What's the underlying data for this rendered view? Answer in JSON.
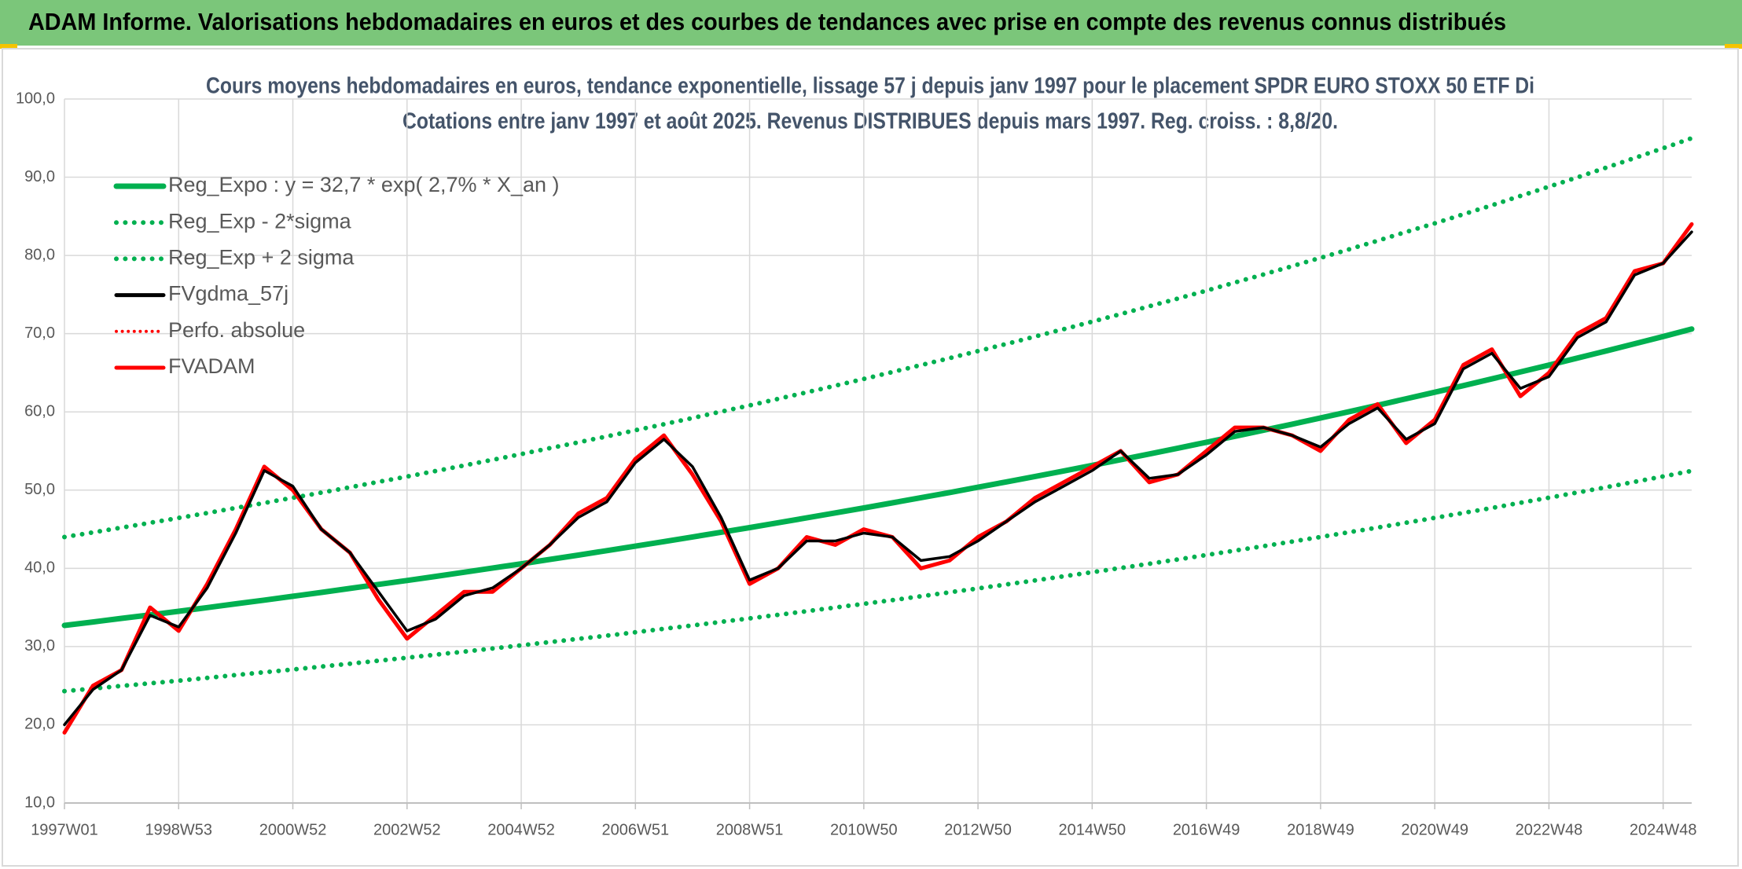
{
  "header": {
    "title": "ADAM Informe. Valorisations hebdomadaires en euros et des courbes de tendances avec prise en compte des revenus connus distribués"
  },
  "chart_data": {
    "type": "line",
    "title": "Cours moyens hebdomadaires en euros, tendance exponentielle, lissage 57 j depuis janv 1997 pour le placement SPDR EURO STOXX 50 ETF Di",
    "subtitle": "Cotations entre janv 1997 et août 2025. Revenus DISTRIBUES depuis mars 1997. Reg. croiss. : 8,8/20.",
    "categories": [
      "1997W01",
      null,
      null,
      null,
      "1998W53",
      null,
      null,
      null,
      "2000W52",
      null,
      null,
      null,
      "2002W52",
      null,
      null,
      null,
      "2004W52",
      null,
      null,
      null,
      "2006W51",
      null,
      null,
      null,
      "2008W51",
      null,
      null,
      null,
      "2010W50",
      null,
      null,
      null,
      "2012W50",
      null,
      null,
      null,
      "2014W50",
      null,
      null,
      null,
      "2016W49",
      null,
      null,
      null,
      "2018W49",
      null,
      null,
      null,
      "2020W49",
      null,
      null,
      null,
      "2022W48",
      null,
      null,
      null,
      "2024W48",
      null
    ],
    "ylim": [
      10,
      100
    ],
    "yticks": [
      {
        "value": 10,
        "label": "10,0"
      },
      {
        "value": 20,
        "label": "20,0"
      },
      {
        "value": 30,
        "label": "30,0"
      },
      {
        "value": 40,
        "label": "40,0"
      },
      {
        "value": 50,
        "label": "50,0"
      },
      {
        "value": 60,
        "label": "60,0"
      },
      {
        "value": 70,
        "label": "70,0"
      },
      {
        "value": 80,
        "label": "80,0"
      },
      {
        "value": 90,
        "label": "90,0"
      },
      {
        "value": 100,
        "label": "100,0"
      }
    ],
    "grid": true,
    "legend": "top-left",
    "series": [
      {
        "name": "Reg_Expo : y = 32,7 * exp( 2,7% *  X_an )",
        "color": "#00b050",
        "style": "solid",
        "values": [
          32.7,
          33.14,
          33.6,
          34.05,
          34.51,
          34.98,
          35.46,
          35.94,
          36.43,
          36.92,
          37.43,
          37.94,
          38.45,
          38.97,
          39.5,
          40.04,
          40.58,
          41.14,
          41.69,
          42.26,
          42.84,
          43.42,
          44.01,
          44.61,
          45.21,
          45.83,
          46.45,
          47.08,
          47.72,
          48.37,
          49.03,
          49.69,
          50.37,
          51.05,
          51.75,
          52.45,
          53.16,
          53.89,
          54.62,
          55.36,
          56.11,
          56.88,
          57.65,
          58.43,
          59.23,
          60.03,
          60.85,
          61.68,
          62.51,
          63.36,
          64.22,
          65.1,
          65.98,
          66.88,
          67.79,
          68.71,
          69.64,
          70.59
        ]
      },
      {
        "name": "Reg_Exp - 2*sigma",
        "color": "#00b050",
        "style": "dotted",
        "values": [
          24.3,
          24.63,
          24.97,
          25.3,
          25.64,
          25.99,
          26.35,
          26.71,
          27.07,
          27.44,
          27.81,
          28.19,
          28.57,
          28.96,
          29.35,
          29.75,
          30.16,
          30.57,
          30.98,
          31.4,
          31.83,
          32.27,
          32.7,
          33.15,
          33.6,
          34.06,
          34.52,
          34.99,
          35.46,
          35.94,
          36.43,
          36.93,
          37.43,
          37.94,
          38.46,
          38.98,
          39.5,
          40.04,
          40.59,
          41.14,
          41.7,
          42.27,
          42.84,
          43.42,
          44.01,
          44.61,
          45.22,
          45.83,
          46.45,
          47.08,
          47.72,
          48.38,
          49.03,
          49.7,
          50.37,
          51.06,
          51.75,
          52.46
        ]
      },
      {
        "name": "Reg_Exp + 2 sigma",
        "color": "#00b050",
        "style": "dotted",
        "values": [
          44.0,
          44.59,
          45.21,
          45.82,
          46.44,
          47.07,
          47.72,
          48.36,
          49.02,
          49.68,
          50.37,
          51.05,
          51.74,
          52.44,
          53.15,
          53.88,
          54.61,
          55.36,
          56.1,
          56.87,
          57.65,
          58.43,
          59.22,
          60.03,
          60.83,
          61.67,
          62.5,
          63.35,
          64.21,
          65.09,
          65.98,
          66.86,
          67.78,
          68.69,
          69.64,
          70.58,
          71.53,
          72.51,
          73.5,
          74.49,
          75.5,
          76.54,
          77.57,
          78.62,
          79.7,
          80.78,
          81.88,
          83.0,
          84.11,
          85.26,
          86.41,
          87.6,
          88.79,
          89.99,
          91.22,
          92.46,
          93.71,
          94.99
        ]
      },
      {
        "name": "FVgdma_57j",
        "color": "#000000",
        "style": "solid",
        "values": [
          20,
          24.5,
          27,
          34,
          32.5,
          37.5,
          44.5,
          52.5,
          50.5,
          45,
          42,
          37,
          32,
          33.5,
          36.5,
          37.5,
          40,
          43,
          46.5,
          48.5,
          53.5,
          56.5,
          53,
          46.5,
          38.5,
          40,
          43.5,
          43.5,
          44.5,
          44,
          41,
          41.5,
          43.5,
          46,
          48.5,
          50.5,
          52.5,
          55,
          51.5,
          52,
          54.5,
          57.5,
          58,
          57,
          55.5,
          58.5,
          60.5,
          56.5,
          58.5,
          65.5,
          67.5,
          63,
          64.5,
          69.5,
          71.5,
          77.5,
          79,
          83
        ]
      },
      {
        "name": "Perfo. absolue",
        "color": "#ff0000",
        "style": "dotted",
        "values": [
          19,
          25,
          27,
          35,
          32,
          38,
          45,
          53,
          50,
          45,
          42,
          36,
          31,
          34,
          37,
          37,
          40,
          43,
          47,
          49,
          54,
          57,
          52,
          46,
          38,
          40,
          44,
          43,
          45,
          44,
          40,
          41,
          44,
          46,
          49,
          51,
          53,
          55,
          51,
          52,
          55,
          58,
          58,
          57,
          55,
          59,
          61,
          56,
          59,
          66,
          68,
          62,
          65,
          70,
          72,
          78,
          79,
          84
        ]
      },
      {
        "name": "FVADAM",
        "color": "#ff0000",
        "style": "solid",
        "values": [
          19,
          25,
          27,
          35,
          32,
          38,
          45,
          53,
          50,
          45,
          42,
          36,
          31,
          34,
          37,
          37,
          40,
          43,
          47,
          49,
          54,
          57,
          52,
          46,
          38,
          40,
          44,
          43,
          45,
          44,
          40,
          41,
          44,
          46,
          49,
          51,
          53,
          55,
          51,
          52,
          55,
          58,
          58,
          57,
          55,
          59,
          61,
          56,
          59,
          66,
          68,
          62,
          65,
          70,
          72,
          78,
          79,
          84
        ]
      }
    ]
  }
}
